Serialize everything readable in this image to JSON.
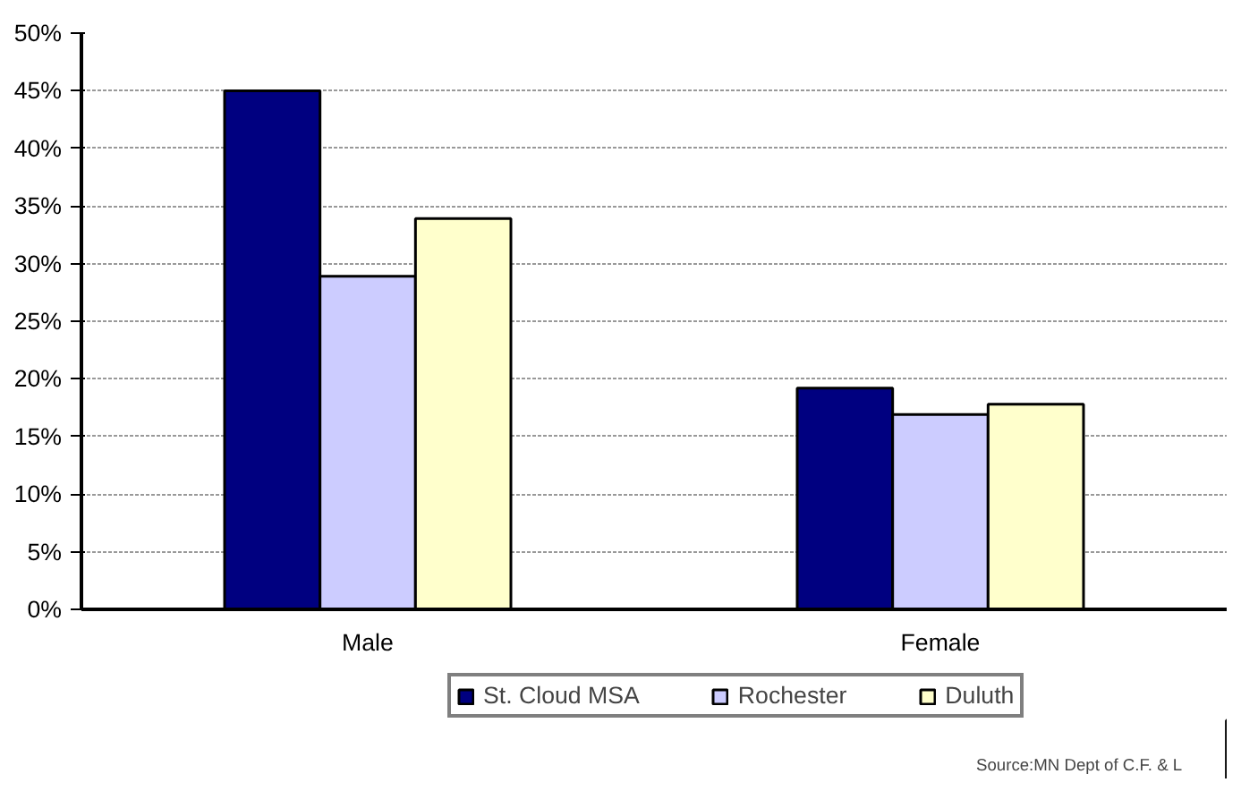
{
  "chart_data": {
    "type": "bar",
    "categories": [
      "Male",
      "Female"
    ],
    "series": [
      {
        "name": "St. Cloud MSA",
        "color": "#000080",
        "values": [
          45,
          19.2
        ]
      },
      {
        "name": "Rochester",
        "color": "#ccccff",
        "values": [
          28.9,
          16.9
        ]
      },
      {
        "name": "Duluth",
        "color": "#ffffcc",
        "values": [
          33.9,
          17.8
        ]
      }
    ],
    "ylim": [
      0,
      50
    ],
    "yticks": [
      {
        "value": 0,
        "label": "0%"
      },
      {
        "value": 5,
        "label": "5%"
      },
      {
        "value": 10,
        "label": "10%"
      },
      {
        "value": 15,
        "label": "15%"
      },
      {
        "value": 20,
        "label": "20%"
      },
      {
        "value": 25,
        "label": "25%"
      },
      {
        "value": 30,
        "label": "30%"
      },
      {
        "value": 35,
        "label": "35%"
      },
      {
        "value": 40,
        "label": "40%"
      },
      {
        "value": 45,
        "label": "45%"
      },
      {
        "value": 50,
        "label": "50%"
      }
    ],
    "grid": "y",
    "legend": "bottom",
    "annotations": [
      "Source:MN  Dept of C.F. & L"
    ]
  }
}
